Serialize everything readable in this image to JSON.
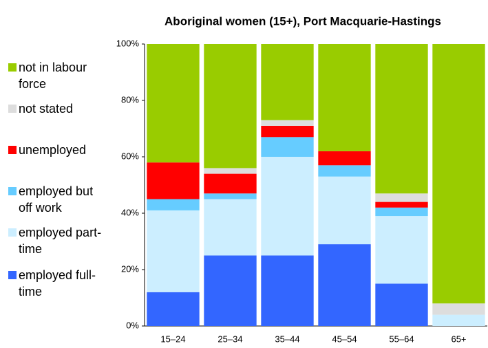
{
  "chart_data": {
    "type": "stacked_bar",
    "title": "Aboriginal women (15+), Port Macquarie-Hastings",
    "categories": [
      "15–24",
      "25–34",
      "35–44",
      "45–54",
      "55–64",
      "65+"
    ],
    "series": [
      {
        "name": "employed full-time",
        "color": "#3366ff",
        "values": [
          12,
          25,
          25,
          29,
          15,
          0
        ]
      },
      {
        "name": "employed part-time",
        "color": "#cceeff",
        "values": [
          29,
          20,
          35,
          24,
          24,
          4
        ]
      },
      {
        "name": "employed but off work",
        "color": "#66ccff",
        "values": [
          4,
          2,
          7,
          4,
          3,
          0
        ]
      },
      {
        "name": "unemployed",
        "color": "#ff0000",
        "values": [
          13,
          7,
          4,
          5,
          2,
          0
        ]
      },
      {
        "name": "not stated",
        "color": "#dddddd",
        "values": [
          0,
          2,
          2,
          0,
          3,
          4
        ]
      },
      {
        "name": "not in labour force",
        "color": "#99cc00",
        "values": [
          42,
          44,
          27,
          38,
          53,
          92
        ]
      }
    ],
    "ylim": [
      0,
      100
    ],
    "yticks": [
      {
        "value": 0,
        "label": "0%"
      },
      {
        "value": 20,
        "label": "20%"
      },
      {
        "value": 40,
        "label": "40%"
      },
      {
        "value": 60,
        "label": "60%"
      },
      {
        "value": 80,
        "label": "80%"
      },
      {
        "value": 100,
        "label": "100%"
      }
    ],
    "legend": "left"
  }
}
